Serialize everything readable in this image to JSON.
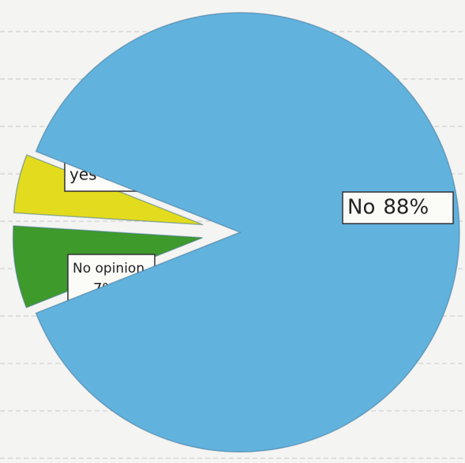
{
  "chart_data": {
    "type": "pie",
    "categories": [
      "yes",
      "No opinion",
      "No"
    ],
    "values": [
      5,
      7,
      88
    ],
    "value_labels": [
      "5%",
      "7%",
      "88%"
    ],
    "colors": [
      "#e3dc1e",
      "#3f9a2c",
      "#62b2de"
    ]
  }
}
